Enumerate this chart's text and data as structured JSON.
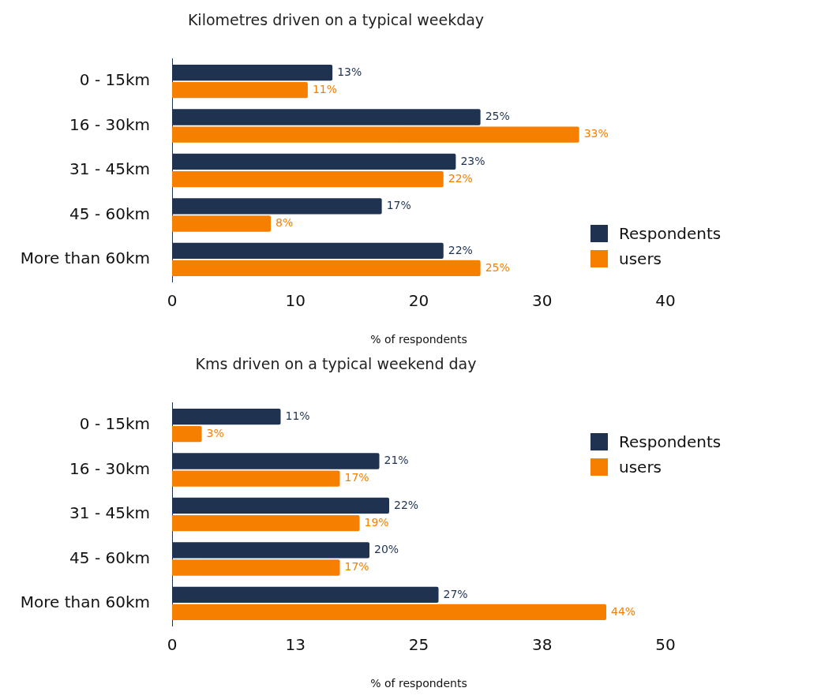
{
  "chart_data": [
    {
      "type": "bar",
      "orientation": "horizontal",
      "title": "Kilometres driven on a typical weekday",
      "xlabel": "% of respondents",
      "categories": [
        "0 - 15km",
        "16 - 30km",
        "31 - 45km",
        "45 - 60km",
        "More than 60km"
      ],
      "series": [
        {
          "name": "Respondents",
          "color": "#1f3250",
          "values": [
            13,
            25,
            23,
            17,
            22
          ],
          "value_labels": [
            "13%",
            "25%",
            "23%",
            "17%",
            "22%"
          ]
        },
        {
          "name": "users",
          "color": "#f77f00",
          "values": [
            11,
            33,
            22,
            8,
            25
          ],
          "value_labels": [
            "11%",
            "33%",
            "22%",
            "8%",
            "25%"
          ]
        }
      ],
      "xlim": [
        0,
        40
      ],
      "xticks": [
        0,
        10,
        20,
        30,
        40
      ],
      "grid": false,
      "legend": "right"
    },
    {
      "type": "bar",
      "orientation": "horizontal",
      "title": "Kms driven on a typical weekend day",
      "xlabel": "% of respondents",
      "categories": [
        "0 - 15km",
        "16 - 30km",
        "31 - 45km",
        "45 - 60km",
        "More than 60km"
      ],
      "series": [
        {
          "name": "Respondents",
          "color": "#1f3250",
          "values": [
            11,
            21,
            22,
            20,
            27
          ],
          "value_labels": [
            "11%",
            "21%",
            "22%",
            "20%",
            "27%"
          ]
        },
        {
          "name": "users",
          "color": "#f77f00",
          "values": [
            3,
            17,
            19,
            17,
            44
          ],
          "value_labels": [
            "3%",
            "17%",
            "19%",
            "17%",
            "44%"
          ]
        }
      ],
      "xlim": [
        0,
        50
      ],
      "xticks": [
        0,
        {
          "value": 12.5,
          "label": "13"
        },
        25,
        {
          "value": 37.5,
          "label": "38"
        },
        50
      ],
      "grid": false,
      "legend": "top right"
    }
  ]
}
